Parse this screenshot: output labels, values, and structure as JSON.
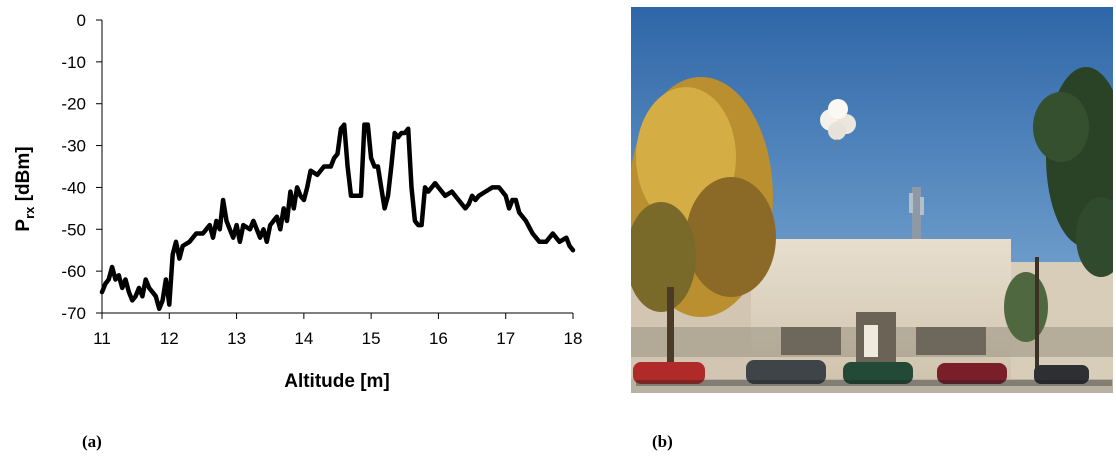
{
  "panels": {
    "a": "(a)",
    "b": "(b)"
  },
  "chart_data": {
    "type": "line",
    "xlabel": "Altitude [m]",
    "ylabel_main": "P",
    "ylabel_sub": "rx",
    "ylabel_unit": " [dBm]",
    "xlim": [
      11,
      18
    ],
    "ylim": [
      -70,
      0
    ],
    "xticks": [
      11,
      12,
      13,
      14,
      15,
      16,
      17,
      18
    ],
    "yticks": [
      0,
      -10,
      -20,
      -30,
      -40,
      -50,
      -60,
      -70
    ],
    "grid": false,
    "legend": "none",
    "line_color": "#000000",
    "series": [
      {
        "x": [
          11.0,
          11.05,
          11.1,
          11.15,
          11.2,
          11.25,
          11.3,
          11.35,
          11.4,
          11.45,
          11.5,
          11.55,
          11.6,
          11.65,
          11.7,
          11.75,
          11.8,
          11.85,
          11.9,
          11.95,
          12.0,
          12.05,
          12.1,
          12.15,
          12.2,
          12.3,
          12.4,
          12.5,
          12.6,
          12.65,
          12.7,
          12.75,
          12.8,
          12.85,
          12.9,
          12.95,
          13.0,
          13.05,
          13.1,
          13.2,
          13.25,
          13.3,
          13.35,
          13.4,
          13.45,
          13.5,
          13.6,
          13.65,
          13.7,
          13.75,
          13.8,
          13.85,
          13.9,
          13.95,
          14.0,
          14.05,
          14.1,
          14.2,
          14.3,
          14.4,
          14.45,
          14.5,
          14.55,
          14.6,
          14.65,
          14.7,
          14.75,
          14.8,
          14.85,
          14.9,
          14.95,
          15.0,
          15.05,
          15.1,
          15.15,
          15.2,
          15.25,
          15.3,
          15.35,
          15.4,
          15.45,
          15.5,
          15.55,
          15.6,
          15.65,
          15.7,
          15.75,
          15.8,
          15.85,
          15.9,
          15.95,
          16.0,
          16.1,
          16.2,
          16.3,
          16.4,
          16.45,
          16.5,
          16.55,
          16.6,
          16.7,
          16.8,
          16.9,
          17.0,
          17.05,
          17.1,
          17.15,
          17.2,
          17.3,
          17.4,
          17.5,
          17.6,
          17.7,
          17.8,
          17.9,
          17.95,
          18.0
        ],
        "values": [
          -65,
          -63,
          -62,
          -59,
          -62,
          -61,
          -64,
          -62,
          -65,
          -67,
          -66,
          -64,
          -66,
          -62,
          -64,
          -65,
          -66,
          -69,
          -67,
          -62,
          -68,
          -56,
          -53,
          -57,
          -54,
          -53,
          -51,
          -51,
          -49,
          -52,
          -48,
          -50,
          -43,
          -48,
          -50,
          -52,
          -49,
          -53,
          -49,
          -50,
          -48,
          -50,
          -52,
          -50,
          -53,
          -49,
          -47,
          -50,
          -45,
          -48,
          -41,
          -45,
          -40,
          -42,
          -43,
          -40,
          -36,
          -37,
          -35,
          -35,
          -33,
          -32,
          -26,
          -25,
          -35,
          -42,
          -42,
          -42,
          -42,
          -25,
          -25,
          -33,
          -35,
          -35,
          -40,
          -45,
          -42,
          -35,
          -27,
          -28,
          -27,
          -27,
          -26,
          -40,
          -48,
          -49,
          -49,
          -40,
          -41,
          -40,
          -39,
          -40,
          -42,
          -41,
          -43,
          -45,
          -44,
          -42,
          -43,
          -42,
          -41,
          -40,
          -40,
          -42,
          -45,
          -43,
          -43,
          -46,
          -48,
          -51,
          -53,
          -53,
          -51,
          -53,
          -52,
          -54,
          -55
        ]
      }
    ]
  },
  "photo": {
    "colors": {
      "sky_top": "#2e66a8",
      "sky_bottom": "#8bb6db",
      "building": "#e0d6c4",
      "tree_yellow": "#c9a03a",
      "tree_green": "#2f4a2c",
      "ground": "#b9b2a3"
    },
    "objects": [
      "balloon",
      "antenna-mast",
      "building",
      "tree-left",
      "tree-right",
      "cars"
    ]
  }
}
